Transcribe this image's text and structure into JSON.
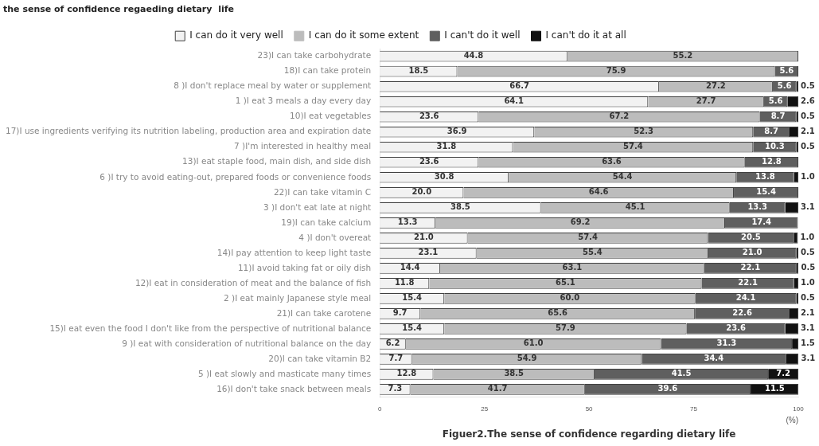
{
  "chart_data": {
    "type": "bar",
    "orientation": "horizontal",
    "stacked": true,
    "title": "the sense of confidence regaeding dietary  life",
    "xlabel": "(%)",
    "annotations": [
      "Figuer2.The sense of confidence regarding dietary life"
    ],
    "categories": [
      "23)I can take carbohydrate",
      "18)I can take protein",
      "8 )I don't replace meal by water or supplement",
      "1 )I eat 3 meals a day every day",
      "10)I eat vegetables",
      "17)I use ingredients verifying its nutrition labeling, production area and expiration date",
      "7 )I'm interested in healthy meal",
      "13)I eat staple food, main dish, and side dish",
      "6 )I try to avoid eating-out, prepared foods or convenience foods",
      "22)I can take vitamin C",
      "3 )I don't eat late at night",
      "19)I can take calcium",
      "4 )I don't overeat",
      "14)I pay attention to keep light taste",
      "11)I avoid taking fat or oily dish",
      "12)I eat in consideration of meat and the balance of fish",
      "2 )I eat mainly Japanese style meal",
      "21)I can take carotene",
      "15)I eat even the food I don't like from the perspective of nutritional balance",
      "9 )I eat with consideration of nutritional balance on the day",
      "20)I can take vitamin B2",
      "5 )I eat slowly and masticate many times",
      "16)I don't take snack between meals"
    ],
    "series": [
      {
        "name": "I can do it very well",
        "color": "#f2f2f2",
        "values": [
          44.8,
          18.5,
          66.7,
          64.1,
          23.6,
          36.9,
          31.8,
          23.6,
          30.8,
          20.0,
          38.5,
          13.3,
          21.0,
          23.1,
          14.4,
          11.8,
          15.4,
          9.7,
          15.4,
          6.2,
          7.7,
          12.8,
          7.3
        ],
        "value_labels": [
          "44.8",
          "18.5",
          "66.7",
          "64.1",
          "23.6",
          "36.9",
          "31.8",
          "23.6",
          "30.8",
          "20.0",
          "38.5",
          "13.3",
          "21.0",
          "23.1",
          "14.4",
          "11.8",
          "15.4",
          "9.7",
          "15.4",
          "6.2",
          "7.7",
          "12.8",
          "7.3"
        ]
      },
      {
        "name": "I can do it some extent",
        "color": "#bcbcbc",
        "values": [
          55.2,
          75.9,
          27.2,
          27.7,
          67.2,
          52.3,
          57.4,
          63.6,
          54.4,
          64.6,
          45.1,
          69.2,
          57.4,
          55.4,
          63.1,
          65.1,
          60.0,
          65.6,
          57.9,
          61.0,
          54.9,
          38.5,
          41.7
        ],
        "value_labels": [
          "55.2",
          "75.9",
          "27.2",
          "27.7",
          "67.2",
          "52.3",
          "57.4",
          "63.6",
          "54.4",
          "64.6",
          "45.1",
          "69.2",
          "57.4",
          "55.4",
          "63.1",
          "65.1",
          "60.0",
          "65.6",
          "57.9",
          "61.0",
          "54.9",
          "38.5",
          "41.7"
        ]
      },
      {
        "name": "I can't do it well",
        "color": "#5f5f5f",
        "values": [
          null,
          5.6,
          5.6,
          5.6,
          8.7,
          8.7,
          10.3,
          12.8,
          13.8,
          15.4,
          13.3,
          17.4,
          20.5,
          21.0,
          22.1,
          22.1,
          24.1,
          22.6,
          23.6,
          31.3,
          34.4,
          41.5,
          39.6
        ],
        "value_labels": [
          null,
          "5.6",
          "5.6",
          "5.6",
          "8.7",
          "8.7",
          "10.3",
          "12.8",
          "13.8",
          "15.4",
          "13.3",
          "17.4",
          "20.5",
          "21.0",
          "22.1",
          "22.1",
          "24.1",
          "22.6",
          "23.6",
          "31.3",
          "34.4",
          "41.5",
          "39.6"
        ]
      },
      {
        "name": "I can't do it at all",
        "color": "#111111",
        "values": [
          null,
          null,
          0.5,
          2.6,
          0.5,
          2.1,
          0.5,
          null,
          1.0,
          null,
          3.1,
          null,
          1.0,
          0.5,
          0.5,
          1.0,
          0.5,
          2.1,
          3.1,
          1.5,
          3.1,
          7.2,
          11.5
        ],
        "value_labels": [
          null,
          null,
          "0.5",
          "2.6",
          "0.5",
          "2.1",
          "0.5",
          null,
          "1.0",
          null,
          "3.1",
          null,
          "1.0",
          "0.5",
          "0.5",
          "1.0",
          "0.5",
          "2.1",
          "3.1",
          "1.5",
          "3.1",
          "7.2",
          "11.5"
        ]
      }
    ],
    "xlim": [
      0,
      100
    ],
    "xticks": [
      0,
      25,
      50,
      75,
      100
    ],
    "grid": false,
    "legend": "top"
  }
}
